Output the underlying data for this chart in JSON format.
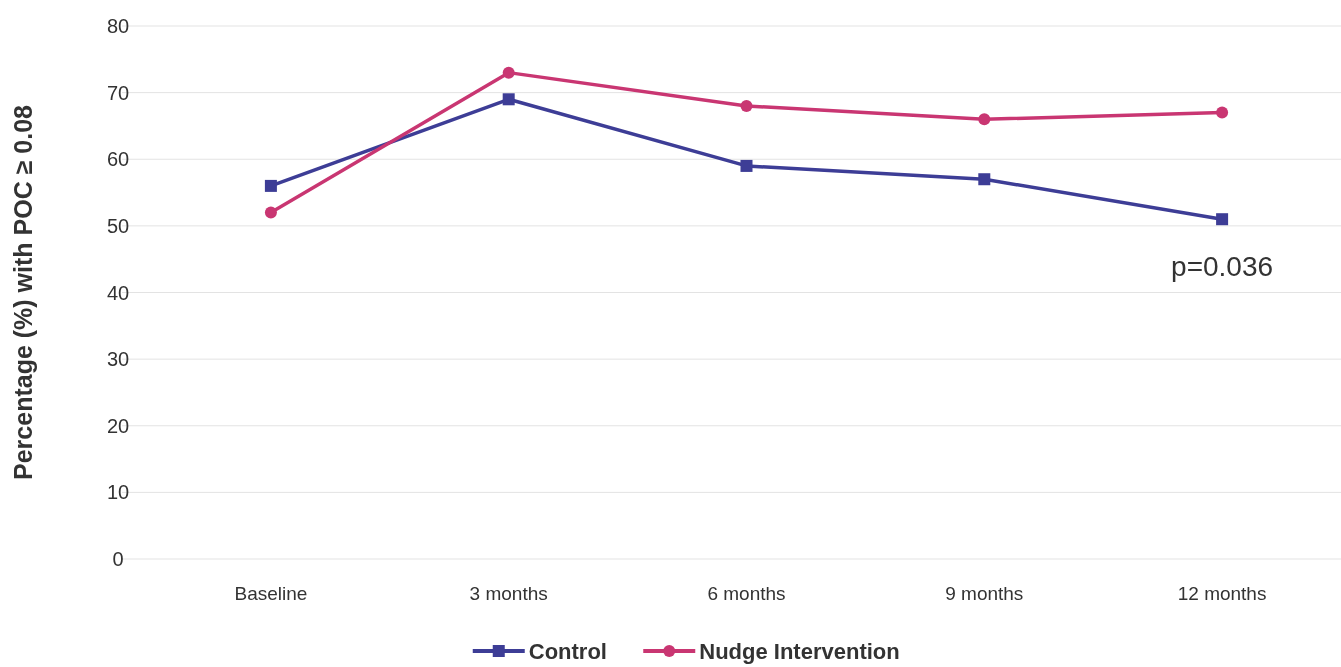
{
  "chart_data": {
    "type": "line",
    "ylabel": "Percentage (%) with POC ≥ 0.08",
    "categories": [
      "Baseline",
      "3 months",
      "6 months",
      "9 months",
      "12 months"
    ],
    "series": [
      {
        "name": "Control",
        "color": "#3d3d96",
        "marker": "square",
        "values": [
          56,
          69,
          59,
          57,
          51
        ]
      },
      {
        "name": "Nudge Intervention",
        "color": "#c93672",
        "marker": "circle",
        "values": [
          52,
          73,
          68,
          66,
          67
        ]
      }
    ],
    "ylim": [
      0,
      80
    ],
    "yticks": [
      0,
      10,
      20,
      30,
      40,
      50,
      60,
      70,
      80
    ],
    "grid": "y",
    "legend": "bottom",
    "line_style": "solid",
    "annotations": [
      "p=0.036"
    ]
  }
}
